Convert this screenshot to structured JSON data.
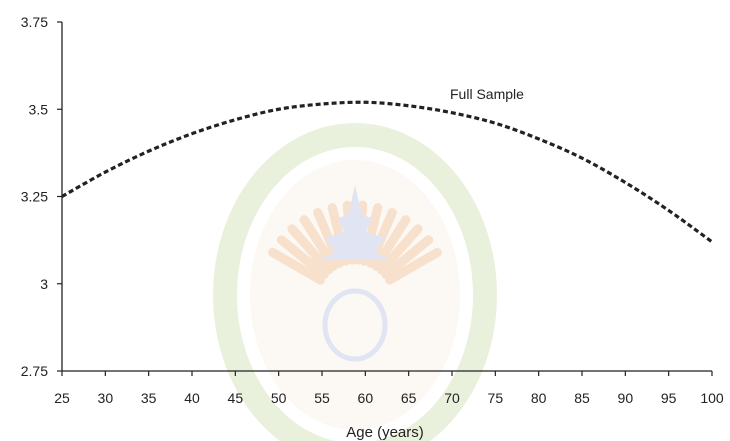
{
  "chart_data": {
    "type": "line",
    "title": "",
    "xlabel": "Age (years)",
    "ylabel": "",
    "xlim": [
      25,
      100
    ],
    "ylim": [
      2.75,
      3.75
    ],
    "x_ticks": [
      "25",
      "30",
      "35",
      "40",
      "45",
      "50",
      "55",
      "60",
      "65",
      "70",
      "75",
      "80",
      "85",
      "90",
      "95",
      "100"
    ],
    "y_ticks": [
      "3.75",
      "3.5",
      "3.25",
      "3",
      "2.75"
    ],
    "grid": false,
    "legend": "none",
    "series": [
      {
        "name": "Full Sample",
        "line_style": "dashed",
        "color": "#222222",
        "x": [
          25,
          30,
          35,
          40,
          45,
          50,
          55,
          60,
          65,
          70,
          75,
          80,
          85,
          90,
          95,
          100
        ],
        "y": [
          3.25,
          3.32,
          3.38,
          3.43,
          3.47,
          3.5,
          3.515,
          3.52,
          3.51,
          3.49,
          3.46,
          3.415,
          3.36,
          3.29,
          3.21,
          3.12
        ]
      }
    ]
  },
  "watermark": {
    "description_name": "university-seal-watermark",
    "ring_color": "#d8e6c2",
    "flame_color": "#f3c9a3",
    "emblem_color": "#c9cfe8"
  }
}
